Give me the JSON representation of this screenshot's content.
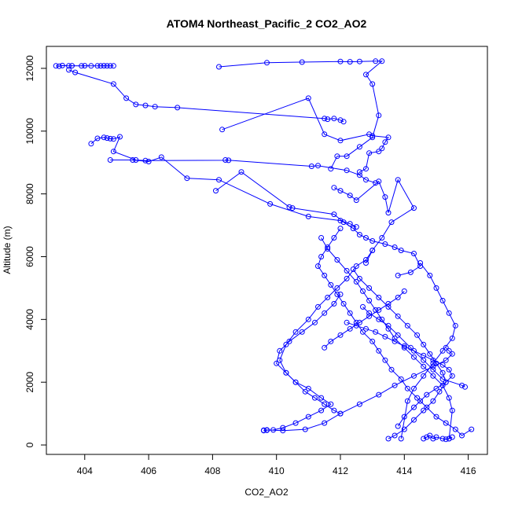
{
  "chart_data": {
    "type": "line",
    "title": "ATOM4 Northeast_Pacific_2 CO2_AO2",
    "xlabel": "CO2_AO2",
    "ylabel": "Altitude (m)",
    "xlim": [
      402.8,
      416.6
    ],
    "ylim": [
      -300,
      12700
    ],
    "xticks": [
      404,
      406,
      408,
      410,
      412,
      414,
      416
    ],
    "yticks": [
      0,
      2000,
      4000,
      6000,
      8000,
      10000,
      12000
    ],
    "grid": false,
    "legend": "none",
    "marker": "open-circle",
    "color": "#0000ff",
    "series": [
      {
        "x": [
          403.1,
          403.2,
          403.3,
          403.5,
          403.6,
          403.9,
          404.0,
          404.2,
          404.4,
          404.5,
          404.6,
          404.7,
          404.8,
          404.9
        ],
        "y": [
          12080,
          12070,
          12090,
          12080,
          12085,
          12080,
          12085,
          12080,
          12080,
          12080,
          12085,
          12080,
          12080,
          12080
        ]
      },
      {
        "x": [
          403.5,
          403.7,
          404.9,
          405.3,
          405.6,
          405.9,
          406.2,
          406.9,
          411.5,
          411.6,
          411.8,
          412.0,
          412.1
        ],
        "y": [
          11950,
          11870,
          11500,
          11050,
          10850,
          10820,
          10780,
          10750,
          10400,
          10380,
          10400,
          10350,
          10300
        ]
      },
      {
        "x": [
          408.2,
          409.7,
          410.8,
          412.0,
          412.3,
          412.6,
          413.1,
          413.3,
          412.8,
          413.0,
          413.2,
          413.0,
          412.6,
          412.2,
          411.9,
          411.7
        ],
        "y": [
          12050,
          12180,
          12200,
          12220,
          12210,
          12220,
          12230,
          12230,
          11800,
          11500,
          10500,
          9800,
          9500,
          9200,
          9200,
          8800
        ]
      },
      {
        "x": [
          408.3,
          411.0,
          411.5,
          412.0,
          412.9,
          413.0,
          413.5,
          413.4,
          413.3,
          413.2,
          412.9,
          412.8,
          412.6
        ],
        "y": [
          10050,
          11050,
          9900,
          9700,
          9900,
          9850,
          9800,
          9650,
          9450,
          9350,
          9300,
          8800,
          8700
        ]
      },
      {
        "x": [
          404.2,
          404.4,
          404.6,
          404.7,
          404.8,
          404.9,
          405.1,
          404.9,
          405.6,
          405.9,
          408.5,
          408.4,
          411.1,
          411.3,
          412.2,
          412.6,
          412.8,
          413.1
        ],
        "y": [
          9600,
          9770,
          9800,
          9780,
          9760,
          9750,
          9820,
          9350,
          9080,
          9060,
          9070,
          9080,
          8880,
          8900,
          8750,
          8600,
          8450,
          8350
        ]
      },
      {
        "x": [
          404.8,
          405.5,
          406.0,
          406.4,
          407.2,
          408.2,
          409.8,
          411.0,
          412.0,
          412.3,
          412.5
        ],
        "y": [
          9080,
          9080,
          9030,
          9170,
          8500,
          8450,
          7680,
          7280,
          7150,
          7050,
          6950
        ]
      },
      {
        "x": [
          408.1,
          408.9,
          410.4,
          410.5,
          411.8,
          412.1,
          412.4,
          412.6,
          412.8,
          413.0,
          413.4,
          413.7,
          413.9,
          414.3,
          414.5,
          414.2,
          413.8
        ],
        "y": [
          8100,
          8700,
          7580,
          7550,
          7350,
          7100,
          6900,
          6700,
          6600,
          6500,
          6400,
          6300,
          6200,
          6100,
          5700,
          5500,
          5400
        ]
      },
      {
        "x": [
          411.8,
          412.0,
          412.3,
          412.5,
          413.2,
          413.4,
          413.5,
          413.8,
          414.3,
          413.6,
          413.3,
          413.0,
          412.8
        ],
        "y": [
          8200,
          8100,
          7950,
          7800,
          8400,
          7900,
          7400,
          8450,
          7550,
          7100,
          6600,
          6200,
          5800
        ]
      },
      {
        "x": [
          411.4,
          411.6,
          411.9,
          412.2,
          412.5,
          412.7,
          412.9,
          413.1,
          413.3,
          413.5,
          413.7,
          414.0,
          414.3,
          414.6,
          414.9,
          415.2,
          415.4,
          415.5,
          415.4
        ],
        "y": [
          6600,
          6250,
          5900,
          5550,
          5200,
          4900,
          4600,
          4300,
          4000,
          3700,
          3400,
          3100,
          2800,
          2500,
          2200,
          1900,
          1500,
          1100,
          200
        ]
      },
      {
        "x": [
          412.0,
          411.8,
          411.6,
          411.4,
          411.3,
          411.5,
          411.7,
          411.9,
          412.1,
          412.3,
          412.5,
          412.7,
          413.0,
          413.2,
          413.4,
          413.6,
          413.9,
          414.1,
          414.4,
          414.7,
          415.0,
          415.3,
          415.6,
          415.8,
          416.1
        ],
        "y": [
          6900,
          6600,
          6300,
          6000,
          5700,
          5400,
          5100,
          4800,
          4500,
          4200,
          3900,
          3600,
          3300,
          3000,
          2700,
          2400,
          2100,
          1800,
          1500,
          1200,
          900,
          700,
          500,
          300,
          500
        ]
      },
      {
        "x": [
          413.0,
          412.8,
          412.5,
          412.2,
          411.9,
          411.6,
          411.3,
          411.0,
          410.6,
          410.3,
          410.1,
          410.3,
          410.6,
          410.9,
          411.2,
          411.5,
          411.8,
          412.0
        ],
        "y": [
          6200,
          5900,
          5700,
          5300,
          5000,
          4700,
          4400,
          4000,
          3600,
          3200,
          2700,
          2300,
          2000,
          1700,
          1500,
          1300,
          1100,
          1000
        ]
      },
      {
        "x": [
          412.4,
          412.6,
          412.9,
          413.2,
          413.5,
          413.8,
          414.1,
          414.4,
          414.6,
          414.8,
          415.0,
          415.2,
          415.3,
          415.1,
          414.9,
          414.6,
          414.3,
          414.0,
          413.7,
          413.5
        ],
        "y": [
          5600,
          5300,
          5000,
          4700,
          4400,
          4100,
          3800,
          3500,
          3200,
          2900,
          2600,
          2300,
          2000,
          1700,
          1400,
          1100,
          800,
          500,
          300,
          200
        ]
      },
      {
        "x": [
          412.0,
          411.8,
          411.5,
          411.2,
          410.8,
          410.4,
          410.1,
          410.0,
          410.3,
          410.6,
          411.0,
          411.4,
          411.7,
          411.4,
          411.0,
          410.6,
          410.2,
          409.9,
          409.7,
          409.6
        ],
        "y": [
          4800,
          4500,
          4200,
          3900,
          3600,
          3300,
          3000,
          2600,
          2300,
          2000,
          1800,
          1500,
          1300,
          1100,
          900,
          700,
          550,
          480,
          470,
          460
        ]
      },
      {
        "x": [
          409.6,
          409.7,
          410.2,
          410.9,
          411.5,
          412.0,
          412.6,
          413.2,
          413.7,
          414.3,
          414.9,
          415.3,
          415.5,
          415.4,
          415.3
        ],
        "y": [
          470,
          480,
          460,
          500,
          700,
          1000,
          1300,
          1600,
          1900,
          2200,
          2500,
          2700,
          2900,
          3000,
          3100
        ]
      },
      {
        "x": [
          412.2,
          412.5,
          412.8,
          413.1,
          413.4,
          413.7,
          414.0,
          414.3,
          414.6,
          414.9,
          415.2,
          415.4,
          415.5,
          415.3,
          415.0,
          414.7,
          414.5,
          414.3,
          414.0,
          413.8
        ],
        "y": [
          3900,
          3800,
          3700,
          3600,
          3450,
          3300,
          3150,
          3000,
          2850,
          2700,
          2550,
          2400,
          2200,
          2000,
          1800,
          1600,
          1400,
          1200,
          900,
          600
        ]
      },
      {
        "x": [
          412.7,
          412.9,
          413.2,
          413.5,
          413.8,
          414.2,
          414.6,
          414.9,
          415.2,
          415.8,
          415.9
        ],
        "y": [
          4400,
          4200,
          4000,
          3800,
          3500,
          3100,
          2700,
          2400,
          2100,
          1900,
          1850
        ]
      },
      {
        "x": [
          414.0,
          413.8,
          413.5,
          413.2,
          412.9,
          412.6,
          412.3,
          412.0,
          411.7,
          411.5
        ],
        "y": [
          4900,
          4700,
          4500,
          4300,
          4100,
          3900,
          3700,
          3500,
          3300,
          3100
        ]
      },
      {
        "x": [
          414.5,
          414.8,
          415.0,
          415.2,
          415.4,
          415.6,
          415.5,
          415.2,
          414.9,
          414.6,
          414.3,
          414.1,
          413.9
        ],
        "y": [
          5800,
          5400,
          5000,
          4600,
          4200,
          3800,
          3400,
          3000,
          2600,
          2200,
          1800,
          1400,
          200
        ]
      },
      {
        "x": [
          414.6,
          414.7,
          414.8,
          414.9,
          415.0,
          415.2,
          415.3,
          415.4,
          415.5
        ],
        "y": [
          200,
          250,
          300,
          200,
          250,
          200,
          180,
          200,
          250
        ]
      }
    ]
  }
}
